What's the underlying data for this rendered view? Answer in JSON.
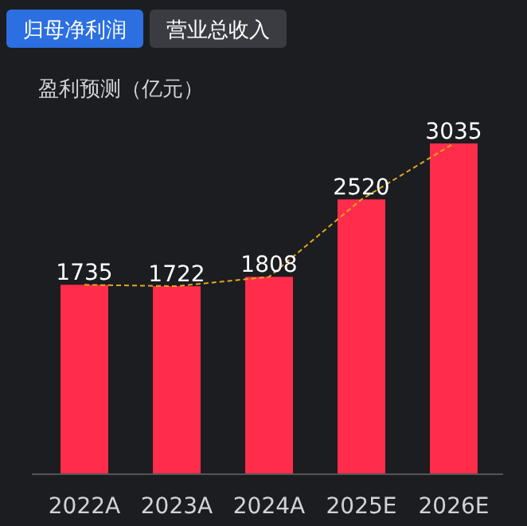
{
  "chart_data": {
    "type": "bar",
    "title": "盈利预测（亿元）",
    "annotations": [
      "归母净利润",
      "营业总收入"
    ],
    "categories": [
      "2022A",
      "2023A",
      "2024A",
      "2025E",
      "2026E"
    ],
    "series": [
      {
        "color": "#ff2d4b",
        "values": [
          1735,
          1722,
          1808,
          2520,
          3035
        ]
      },
      {
        "type": "line",
        "color": "#e0a81c",
        "line_style": "dashed",
        "values": [
          1735,
          1722,
          1808,
          2520,
          3035
        ],
        "value_labels": [
          null,
          null,
          null,
          null,
          null
        ]
      }
    ],
    "data_labels": true
  }
}
